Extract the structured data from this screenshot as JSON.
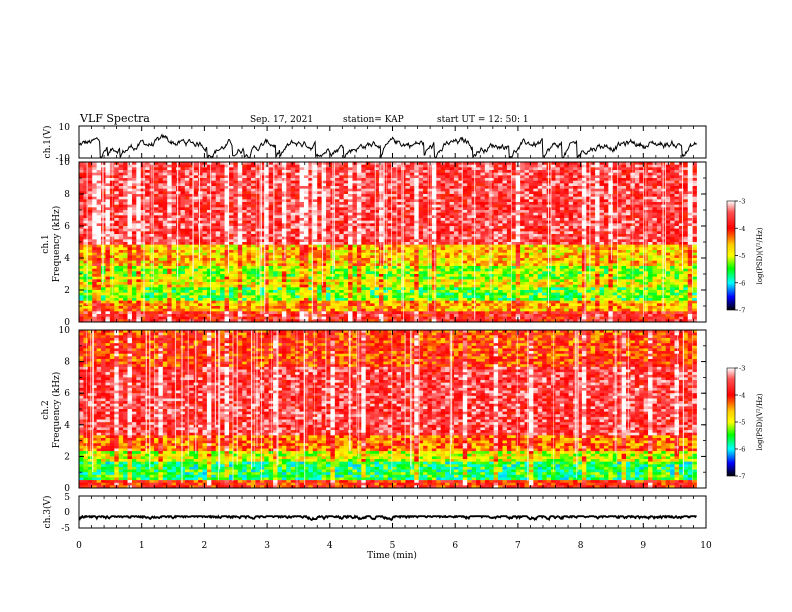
{
  "header": {
    "title": "VLF Spectra",
    "date": "Sep. 17, 2021",
    "station": "station= KAP",
    "start": "start  UT =   12: 50: 1"
  },
  "colorbar": {
    "label": "log(PSD)(V²/Hz)",
    "ticks": [
      "-3",
      "-4",
      "-5",
      "-6",
      "-7"
    ],
    "colors": [
      "#ffffff",
      "#ff0000",
      "#ffcc00",
      "#ffff00",
      "#00ff00",
      "#00ffff",
      "#0000ff",
      "#000000"
    ]
  },
  "chart_data": [
    {
      "type": "line",
      "name": "ch1 waveform",
      "ylabel": "ch.1(V)",
      "ylim": [
        -10,
        10
      ],
      "y_ticks": [
        "10",
        "-10"
      ],
      "x_range": [
        0,
        9.85
      ],
      "x_units": "min",
      "trace_range_approx": [
        -10,
        5
      ]
    },
    {
      "type": "heatmap",
      "name": "ch1 spectrogram",
      "ylabel_top": "ch.1",
      "ylabel": "Frequency  (kHz)",
      "ylim": [
        0,
        10
      ],
      "y_ticks": [
        "0",
        "2",
        "4",
        "6",
        "8",
        "10"
      ],
      "x_range": [
        0,
        9.85
      ],
      "zlim": [
        -7,
        -3
      ],
      "bands": [
        {
          "f0": 0.0,
          "f1": 0.6,
          "level": -3.8
        },
        {
          "f0": 0.6,
          "f1": 1.3,
          "level": -4.6
        },
        {
          "f0": 1.3,
          "f1": 2.1,
          "level": -5.4
        },
        {
          "f0": 2.1,
          "f1": 2.6,
          "level": -4.9
        },
        {
          "f0": 2.6,
          "f1": 3.5,
          "level": -5.2
        },
        {
          "f0": 3.5,
          "f1": 4.8,
          "level": -4.7
        },
        {
          "f0": 4.8,
          "f1": 10.0,
          "level": -3.6
        }
      ]
    },
    {
      "type": "heatmap",
      "name": "ch2 spectrogram",
      "ylabel_top": "ch.2",
      "ylabel": "Frequency  (kHz)",
      "ylim": [
        0,
        10
      ],
      "y_ticks": [
        "0",
        "2",
        "4",
        "6",
        "8",
        "10"
      ],
      "x_range": [
        0,
        9.85
      ],
      "zlim": [
        -7,
        -3
      ],
      "bands": [
        {
          "f0": 0.0,
          "f1": 0.5,
          "level": -4.0
        },
        {
          "f0": 0.5,
          "f1": 1.6,
          "level": -5.6
        },
        {
          "f0": 1.6,
          "f1": 2.4,
          "level": -5.0
        },
        {
          "f0": 2.4,
          "f1": 3.4,
          "level": -4.3
        },
        {
          "f0": 3.4,
          "f1": 7.6,
          "level": -3.6
        },
        {
          "f0": 7.6,
          "f1": 10.0,
          "level": -4.1
        }
      ]
    },
    {
      "type": "line",
      "name": "ch3 waveform",
      "ylabel": "ch.3(V)",
      "ylim": [
        -5,
        5
      ],
      "y_ticks": [
        "5",
        "0",
        "-5"
      ],
      "x_range": [
        0,
        9.85
      ],
      "trace_range_approx": [
        -3,
        -1.3
      ]
    }
  ],
  "x_axis": {
    "label": "Time  (min)",
    "range": [
      0,
      10
    ],
    "ticks": [
      "0",
      "1",
      "2",
      "3",
      "4",
      "5",
      "6",
      "7",
      "8",
      "9",
      "10"
    ]
  }
}
